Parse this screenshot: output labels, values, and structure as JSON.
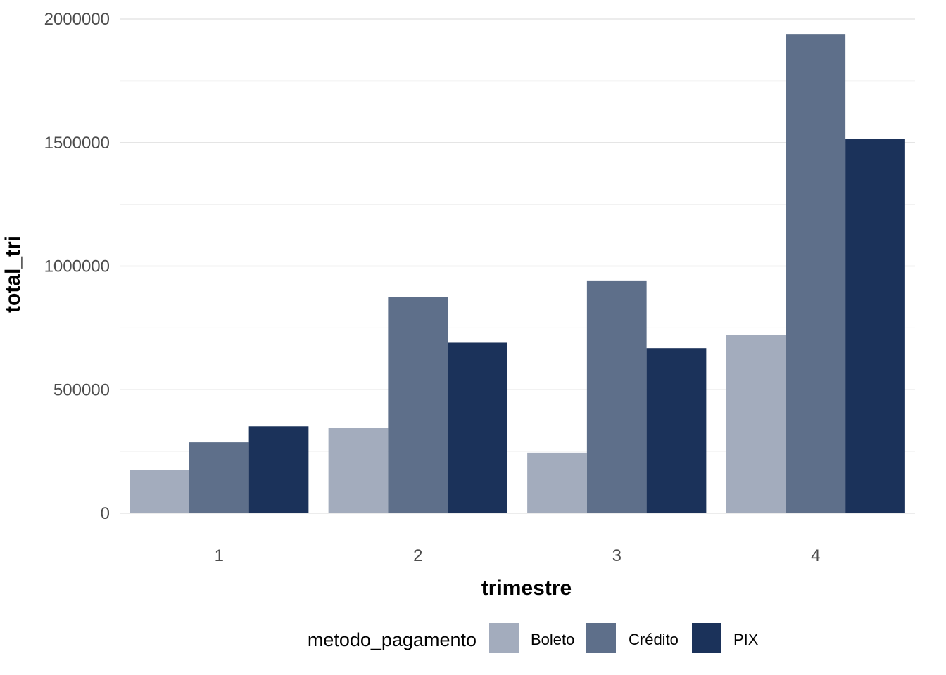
{
  "chart_data": {
    "type": "bar",
    "title": "",
    "xlabel": "trimestre",
    "ylabel": "total_tri",
    "ylim": [
      0,
      2000000
    ],
    "ytick_values": [
      0,
      500000,
      1000000,
      1500000,
      2000000
    ],
    "ytick_labels": [
      "0",
      "500000",
      "1000000",
      "1500000",
      "2000000"
    ],
    "grid": true,
    "legend": {
      "title": "metodo_pagamento",
      "position": "bottom"
    },
    "categories": [
      "1",
      "2",
      "3",
      "4"
    ],
    "series": [
      {
        "name": "Boleto",
        "color": "#a3acbd",
        "values": [
          175000,
          345000,
          245000,
          720000
        ]
      },
      {
        "name": "Crédito",
        "color": "#5e6f8a",
        "values": [
          287000,
          875000,
          942000,
          1937000
        ]
      },
      {
        "name": "PIX",
        "color": "#1b325a",
        "values": [
          352000,
          690000,
          668000,
          1515000
        ]
      }
    ]
  }
}
